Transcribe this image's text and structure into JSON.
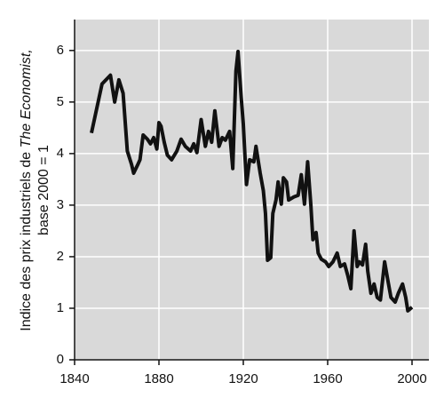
{
  "chart_data": {
    "type": "line",
    "ylabel": {
      "prefix": "Indice des prix industriels de ",
      "italic": "The Economist,",
      "line2": "base 2000 = 1"
    },
    "x": [
      1848,
      1850,
      1853,
      1857,
      1859,
      1861,
      1863,
      1865,
      1867,
      1868,
      1870,
      1871,
      1872.5,
      1874.5,
      1876,
      1877.5,
      1879,
      1880,
      1881,
      1882.5,
      1884,
      1886,
      1888.5,
      1890.5,
      1892.5,
      1895,
      1896.5,
      1898,
      1900,
      1902,
      1903.5,
      1905,
      1906.5,
      1908.5,
      1910,
      1911.5,
      1913.5,
      1915,
      1916.5,
      1917.5,
      1919,
      1920,
      1921.5,
      1923,
      1925,
      1926,
      1928,
      1929.5,
      1930.5,
      1931.5,
      1933,
      1934,
      1935.5,
      1936.5,
      1938,
      1939,
      1940.5,
      1941.5,
      1944,
      1946,
      1947.5,
      1949,
      1950.5,
      1952,
      1953,
      1954.5,
      1955.5,
      1957,
      1959,
      1960.5,
      1962.5,
      1964.5,
      1966,
      1968,
      1969.5,
      1971,
      1972.5,
      1974,
      1975,
      1976.5,
      1978,
      1979,
      1980.5,
      1982,
      1983.5,
      1985,
      1987,
      1988.5,
      1990,
      1992,
      1993.5,
      1995.5,
      1997,
      1998,
      2000
    ],
    "series": [
      {
        "color": "#111111",
        "values": [
          4.4,
          4.78,
          5.35,
          5.52,
          5.0,
          5.43,
          5.17,
          4.05,
          3.79,
          3.62,
          3.79,
          3.88,
          4.36,
          4.28,
          4.19,
          4.31,
          4.09,
          4.6,
          4.53,
          4.22,
          3.97,
          3.88,
          4.05,
          4.28,
          4.14,
          4.05,
          4.19,
          4.02,
          4.66,
          4.14,
          4.43,
          4.22,
          4.83,
          4.14,
          4.31,
          4.26,
          4.43,
          3.71,
          5.6,
          5.98,
          5.09,
          4.57,
          3.4,
          3.88,
          3.84,
          4.14,
          3.62,
          3.28,
          2.84,
          1.93,
          1.98,
          2.84,
          3.1,
          3.45,
          3.02,
          3.53,
          3.45,
          3.1,
          3.16,
          3.19,
          3.59,
          3.02,
          3.84,
          3.02,
          2.33,
          2.47,
          2.07,
          1.95,
          1.9,
          1.81,
          1.9,
          2.07,
          1.81,
          1.86,
          1.64,
          1.38,
          2.5,
          1.81,
          1.9,
          1.84,
          2.24,
          1.72,
          1.29,
          1.47,
          1.21,
          1.16,
          1.9,
          1.55,
          1.21,
          1.12,
          1.29,
          1.47,
          1.21,
          0.95,
          1.02
        ]
      }
    ],
    "xlim": [
      1840,
      2008
    ],
    "ylim": [
      0,
      6.6
    ],
    "xticks": [
      1840,
      1880,
      1920,
      1960,
      2000
    ],
    "yticks": [
      0,
      1,
      2,
      3,
      4,
      5,
      6
    ],
    "grid": true,
    "grid_color": "#ffffff",
    "background": "#d9d9d9"
  }
}
